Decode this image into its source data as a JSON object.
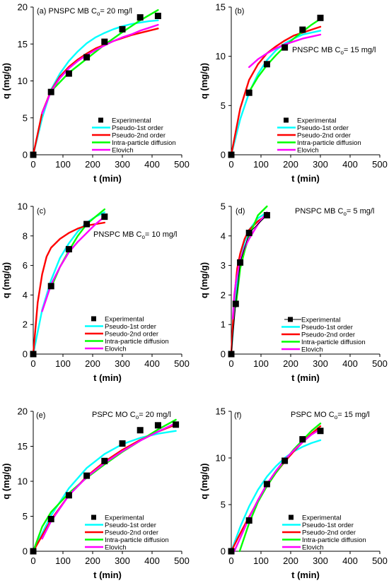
{
  "figure": {
    "xlabel": "t (min)",
    "ylabel": "q (mg/g)",
    "legend": [
      "Experimental",
      "Pseudo-1st order",
      "Pseudo-2nd order",
      "Intra-particle diffusion",
      "Elovich"
    ],
    "colors": {
      "experimental": "#000000",
      "pseudo_first": "#00ffff",
      "pseudo_second": "#ff0000",
      "intra_particle": "#00ff00",
      "elovich": "#ff00ff"
    }
  },
  "chart_data": [
    {
      "type": "scatter",
      "panel": "(a)",
      "annotation_main": "(a) PNSPC MB C",
      "annotation_sub": "o",
      "annotation_tail": "= 20 mg/l",
      "xlabel": "t (min)",
      "ylabel": "q (mg/g)",
      "xlim": [
        0,
        500
      ],
      "ylim": [
        0,
        20
      ],
      "xticks": [
        0,
        100,
        200,
        300,
        400,
        500
      ],
      "yticks": [
        0,
        5,
        10,
        15,
        20
      ],
      "legend_position": "bottom-right",
      "experimental_has_line": false,
      "experimental": {
        "x": [
          0,
          60,
          120,
          180,
          240,
          300,
          360,
          420
        ],
        "y": [
          0,
          8.5,
          11.0,
          13.2,
          15.3,
          17.0,
          18.6,
          18.8
        ]
      },
      "series": [
        {
          "name": "Pseudo-1st order",
          "color": "#00ffff",
          "x": [
            0,
            30,
            60,
            90,
            120,
            150,
            180,
            210,
            240,
            270,
            300,
            330,
            360,
            390,
            420
          ],
          "y": [
            0,
            5.0,
            8.8,
            11.0,
            12.7,
            14.0,
            15.1,
            15.9,
            16.5,
            17.0,
            17.4,
            17.7,
            17.9,
            18.1,
            18.2
          ]
        },
        {
          "name": "Pseudo-2nd order",
          "color": "#ff0000",
          "x": [
            0,
            30,
            60,
            90,
            120,
            150,
            180,
            210,
            240,
            270,
            300,
            330,
            360,
            390,
            420
          ],
          "y": [
            0,
            5.7,
            8.7,
            10.6,
            11.9,
            12.9,
            13.7,
            14.4,
            14.9,
            15.4,
            15.8,
            16.2,
            16.5,
            16.8,
            17.1
          ]
        },
        {
          "name": "Intra-particle diffusion",
          "color": "#00ff00",
          "x": [
            60,
            120,
            180,
            240,
            300,
            360,
            420
          ],
          "y": [
            8.6,
            11.1,
            13.0,
            14.9,
            16.6,
            18.2,
            19.6
          ]
        },
        {
          "name": "Elovich",
          "color": "#ff00ff",
          "x": [
            30,
            60,
            90,
            120,
            150,
            180,
            210,
            240,
            270,
            300,
            330,
            360,
            390,
            420
          ],
          "y": [
            5.6,
            8.6,
            10.4,
            11.7,
            12.7,
            13.5,
            14.2,
            14.8,
            15.4,
            15.9,
            16.3,
            16.8,
            17.2,
            17.6
          ]
        }
      ]
    },
    {
      "type": "scatter",
      "panel": "(b)",
      "annotation_main": "(b)",
      "annotation_sub": "",
      "annotation_tail": "",
      "annotation2_main": "PNSPC MB C",
      "annotation2_sub": "o",
      "annotation2_tail": "= 15 mg/l",
      "xlabel": "t (min)",
      "ylabel": "q (mg/g)",
      "xlim": [
        0,
        500
      ],
      "ylim": [
        0,
        15
      ],
      "xticks": [
        0,
        100,
        200,
        300,
        400,
        500
      ],
      "yticks": [
        0,
        5,
        10,
        15
      ],
      "legend_position": "bottom-right",
      "experimental_has_line": false,
      "experimental": {
        "x": [
          0,
          60,
          120,
          180,
          240,
          300
        ],
        "y": [
          0,
          6.3,
          9.2,
          10.9,
          12.7,
          13.9
        ]
      },
      "series": [
        {
          "name": "Pseudo-1st order",
          "color": "#00ffff",
          "x": [
            0,
            30,
            60,
            90,
            120,
            150,
            180,
            210,
            240,
            270,
            300
          ],
          "y": [
            0,
            3.6,
            6.3,
            8.2,
            9.6,
            10.6,
            11.3,
            11.8,
            12.2,
            12.4,
            12.6
          ]
        },
        {
          "name": "Pseudo-2nd order",
          "color": "#ff0000",
          "x": [
            0,
            30,
            60,
            90,
            120,
            150,
            180,
            210,
            240,
            270,
            300
          ],
          "y": [
            0,
            4.7,
            7.6,
            9.2,
            10.3,
            11.0,
            11.6,
            12.1,
            12.4,
            12.7,
            13.0
          ]
        },
        {
          "name": "Intra-particle diffusion",
          "color": "#00ff00",
          "x": [
            60,
            90,
            120,
            150,
            180,
            210,
            240,
            270,
            300
          ],
          "y": [
            6.4,
            7.9,
            9.1,
            10.1,
            11.0,
            11.8,
            12.5,
            13.2,
            13.8
          ]
        },
        {
          "name": "Elovich",
          "color": "#ff00ff",
          "x": [
            60,
            90,
            120,
            150,
            180,
            210,
            240,
            270,
            300
          ],
          "y": [
            8.9,
            9.7,
            10.3,
            10.8,
            11.2,
            11.5,
            11.8,
            12.0,
            12.2
          ]
        }
      ]
    },
    {
      "type": "scatter",
      "panel": "(c)",
      "annotation_main": "(c)",
      "annotation_sub": "",
      "annotation_tail": "",
      "annotation2_main": "PNSPC MB C",
      "annotation2_sub": "o",
      "annotation2_tail": "= 10 mg/l",
      "xlabel": "t (min)",
      "ylabel": "q (mg/g)",
      "xlim": [
        0,
        500
      ],
      "ylim": [
        0,
        10
      ],
      "xticks": [
        0,
        100,
        200,
        300,
        400,
        500
      ],
      "yticks": [
        0,
        2,
        4,
        6,
        8,
        10
      ],
      "legend_position": "bottom-right",
      "experimental_has_line": false,
      "experimental": {
        "x": [
          0,
          60,
          120,
          180,
          240
        ],
        "y": [
          0,
          4.6,
          7.1,
          8.8,
          9.3
        ]
      },
      "series": [
        {
          "name": "Pseudo-1st order",
          "color": "#00ffff",
          "x": [
            0,
            30,
            60,
            90,
            120,
            150,
            180,
            210,
            240
          ],
          "y": [
            0,
            3.0,
            5.0,
            6.5,
            7.5,
            8.3,
            8.9,
            9.3,
            9.6
          ]
        },
        {
          "name": "Pseudo-2nd order",
          "color": "#ff0000",
          "x": [
            0,
            15,
            30,
            45,
            60,
            90,
            120,
            150,
            180,
            210,
            240
          ],
          "y": [
            0,
            3.5,
            5.4,
            6.6,
            7.2,
            7.8,
            8.2,
            8.5,
            8.7,
            8.8,
            8.9
          ]
        },
        {
          "name": "Intra-particle diffusion",
          "color": "#00ff00",
          "x": [
            60,
            90,
            120,
            150,
            180,
            210,
            240
          ],
          "y": [
            4.5,
            5.9,
            7.0,
            8.0,
            8.8,
            9.3,
            9.8
          ]
        },
        {
          "name": "Elovich",
          "color": "#ff00ff",
          "x": [
            30,
            60,
            90,
            120,
            150,
            180,
            210,
            240
          ],
          "y": [
            2.9,
            4.7,
            5.9,
            6.9,
            7.6,
            8.2,
            8.8,
            9.3
          ]
        }
      ]
    },
    {
      "type": "scatter",
      "panel": "(d)",
      "annotation_main": "(d)",
      "annotation_sub": "",
      "annotation_tail": "",
      "annotation2_main": "PNSPC MB C",
      "annotation2_sub": "o",
      "annotation2_tail": "= 5 mg/l",
      "xlabel": "t (min)",
      "ylabel": "q (mg/g)",
      "xlim": [
        0,
        500
      ],
      "ylim": [
        0,
        5
      ],
      "xticks": [
        0,
        100,
        200,
        300,
        400,
        500
      ],
      "yticks": [
        0,
        1,
        2,
        3,
        4,
        5
      ],
      "legend_position": "bottom-right",
      "experimental_has_line": true,
      "experimental": {
        "x": [
          0,
          15,
          30,
          60,
          120
        ],
        "y": [
          0,
          1.7,
          3.1,
          4.1,
          4.7
        ]
      },
      "series": [
        {
          "name": "Pseudo-1st order",
          "color": "#00ffff",
          "x": [
            0,
            10,
            20,
            30,
            45,
            60,
            90,
            120
          ],
          "y": [
            0,
            1.4,
            2.4,
            3.1,
            3.8,
            4.2,
            4.6,
            4.8
          ]
        },
        {
          "name": "Pseudo-2nd order",
          "color": "#ff0000",
          "x": [
            0,
            10,
            20,
            30,
            45,
            60,
            90,
            120
          ],
          "y": [
            0,
            1.9,
            2.9,
            3.4,
            3.9,
            4.2,
            4.5,
            4.7
          ]
        },
        {
          "name": "Intra-particle diffusion",
          "color": "#00ff00",
          "x": [
            15,
            30,
            45,
            60,
            90,
            120
          ],
          "y": [
            1.6,
            2.9,
            3.5,
            4.0,
            4.7,
            5.0
          ]
        },
        {
          "name": "Elovich",
          "color": "#ff00ff",
          "x": [
            5,
            10,
            15,
            30,
            45,
            60,
            90,
            120
          ],
          "y": [
            1.2,
            2.0,
            2.4,
            3.2,
            3.6,
            3.9,
            4.4,
            4.8
          ]
        }
      ]
    },
    {
      "type": "scatter",
      "panel": "(e)",
      "annotation_main": "(e)",
      "annotation_sub": "",
      "annotation_tail": "",
      "annotation2_main": "PSPC MO C",
      "annotation2_sub": "o",
      "annotation2_tail": "= 20 mg/l",
      "xlabel": "t (min)",
      "ylabel": "q (mg/g)",
      "xlim": [
        0,
        500
      ],
      "ylim": [
        0,
        20
      ],
      "xticks": [
        0,
        100,
        200,
        300,
        400,
        500
      ],
      "yticks": [
        0,
        5,
        10,
        15,
        20
      ],
      "legend_position": "bottom-right",
      "experimental_has_line": false,
      "experimental": {
        "x": [
          0,
          60,
          120,
          180,
          240,
          300,
          360,
          420,
          480
        ],
        "y": [
          0,
          4.6,
          8.0,
          10.8,
          12.9,
          15.4,
          17.3,
          18.0,
          18.1
        ]
      },
      "series": [
        {
          "name": "Pseudo-1st order",
          "color": "#00ffff",
          "x": [
            0,
            60,
            120,
            180,
            240,
            300,
            360,
            420,
            480
          ],
          "y": [
            0,
            5.1,
            9.0,
            11.9,
            13.9,
            15.3,
            16.2,
            16.8,
            17.2
          ]
        },
        {
          "name": "Pseudo-2nd order",
          "color": "#ff0000",
          "x": [
            0,
            60,
            120,
            180,
            240,
            300,
            360,
            420,
            480
          ],
          "y": [
            0,
            4.5,
            8.0,
            10.7,
            12.8,
            14.5,
            15.9,
            17.1,
            18.1
          ]
        },
        {
          "name": "Intra-particle diffusion",
          "color": "#00ff00",
          "x": [
            0,
            30,
            60,
            120,
            180,
            240,
            300,
            360,
            420,
            480
          ],
          "y": [
            0,
            3.5,
            5.6,
            8.3,
            10.5,
            12.4,
            14.2,
            15.8,
            17.4,
            18.8
          ]
        },
        {
          "name": "Elovich",
          "color": "#ff00ff",
          "x": [
            30,
            60,
            120,
            180,
            240,
            300,
            360,
            420,
            480
          ],
          "y": [
            1.8,
            4.3,
            8.0,
            10.6,
            12.6,
            14.3,
            15.8,
            17.1,
            18.3
          ]
        }
      ]
    },
    {
      "type": "scatter",
      "panel": "(f)",
      "annotation_main": "(f)",
      "annotation_sub": "",
      "annotation_tail": "",
      "annotation2_main": "PSPC MO C",
      "annotation2_sub": "o",
      "annotation2_tail": "= 15 mg/l",
      "xlabel": "t (min)",
      "ylabel": "q (mg/g)",
      "xlim": [
        0,
        500
      ],
      "ylim": [
        0,
        15
      ],
      "xticks": [
        0,
        100,
        200,
        300,
        400,
        500
      ],
      "yticks": [
        0,
        5,
        10,
        15
      ],
      "legend_position": "bottom-right",
      "experimental_has_line": false,
      "experimental": {
        "x": [
          0,
          60,
          120,
          180,
          240,
          300
        ],
        "y": [
          0,
          3.3,
          7.2,
          9.7,
          12.0,
          12.9
        ]
      },
      "series": [
        {
          "name": "Pseudo-1st order",
          "color": "#00ffff",
          "x": [
            0,
            30,
            60,
            90,
            120,
            150,
            180,
            210,
            240,
            270,
            300
          ],
          "y": [
            0,
            2.6,
            4.8,
            6.6,
            8.0,
            9.1,
            10.0,
            10.7,
            11.2,
            11.6,
            11.9
          ]
        },
        {
          "name": "Pseudo-2nd order",
          "color": "#ff0000",
          "x": [
            0,
            30,
            60,
            90,
            120,
            150,
            180,
            210,
            240,
            270,
            300
          ],
          "y": [
            0,
            1.9,
            3.7,
            5.4,
            7.0,
            8.4,
            9.6,
            10.7,
            11.7,
            12.6,
            13.4
          ]
        },
        {
          "name": "Intra-particle diffusion",
          "color": "#00ff00",
          "x": [
            28,
            60,
            90,
            120,
            150,
            180,
            210,
            240,
            270,
            300
          ],
          "y": [
            0,
            3.0,
            5.3,
            7.0,
            8.4,
            9.7,
            10.9,
            11.9,
            12.9,
            13.7
          ]
        },
        {
          "name": "Elovich",
          "color": "#ff00ff",
          "x": [
            10,
            30,
            60,
            90,
            120,
            150,
            180,
            210,
            240,
            270,
            300
          ],
          "y": [
            0,
            1.4,
            3.6,
            5.5,
            7.2,
            8.6,
            9.8,
            10.8,
            11.7,
            12.5,
            13.1
          ]
        }
      ]
    }
  ]
}
